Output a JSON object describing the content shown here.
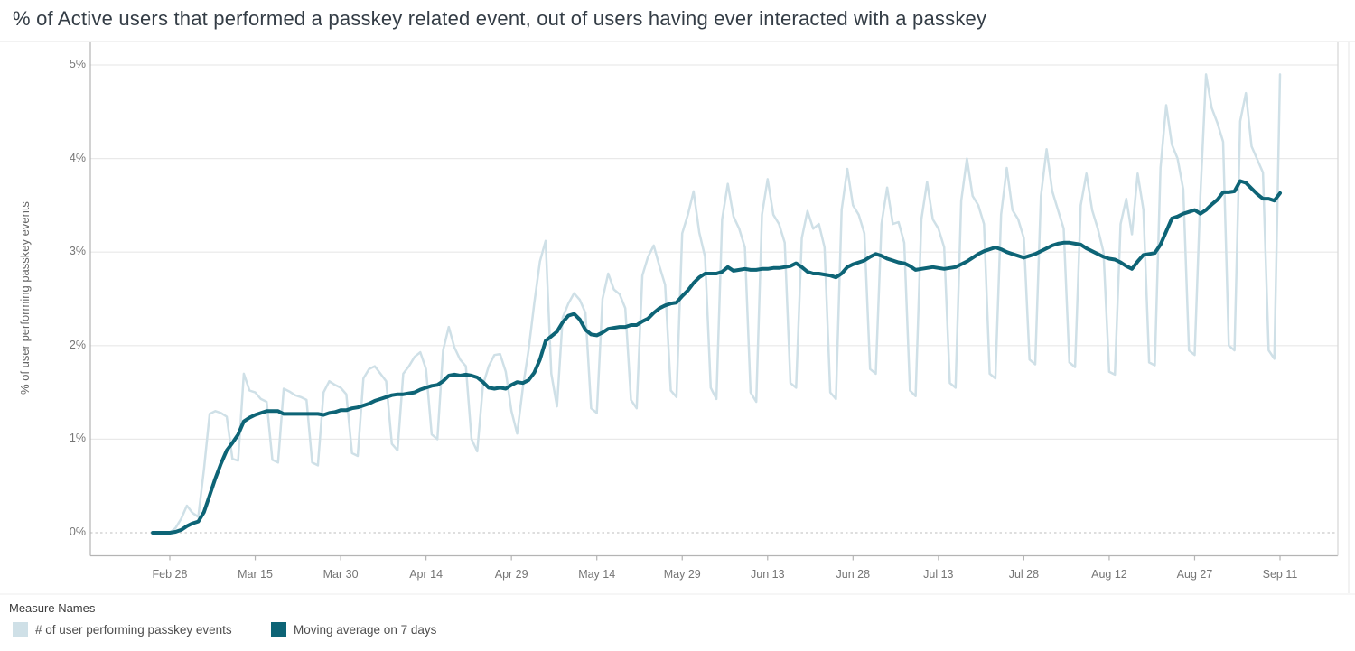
{
  "title": "% of Active users that performed a passkey related event, out of users having ever interacted with a passkey",
  "chart_data": {
    "type": "line",
    "title": "% of Active users that performed a passkey related event, out of users having ever interacted with a passkey",
    "xlabel": "",
    "ylabel": "% of user performing passkey events",
    "y_axis": {
      "label": "% of user performing passkey events",
      "tick_labels": [
        "0%",
        "1%",
        "2%",
        "3%",
        "4%",
        "5%"
      ],
      "tick_values": [
        0,
        1,
        2,
        3,
        4,
        5
      ],
      "min": 0,
      "max": 5.15,
      "unit": "percent",
      "grid": true,
      "zero_line_style": "dotted"
    },
    "x_axis": {
      "tick_labels": [
        "Feb 28",
        "Mar 15",
        "Mar 30",
        "Apr 14",
        "Apr 29",
        "May 14",
        "May 29",
        "Jun 13",
        "Jun 28",
        "Jul 13",
        "Jul 28",
        "Aug 12",
        "Aug 27",
        "Sep 11"
      ],
      "tick_day_indices": [
        3,
        18,
        33,
        48,
        63,
        78,
        93,
        108,
        123,
        138,
        153,
        168,
        183,
        198
      ],
      "tick_interval_days": 15,
      "series_start_label": "Feb 25",
      "series_end_label": "Sep 11",
      "num_days": 199
    },
    "legend_position": "bottom-left",
    "series": [
      {
        "name": "# of user performing passkey events",
        "color": "#cfe0e7",
        "stroke_width": 2.5,
        "values": [
          0,
          0,
          0,
          0,
          0.05,
          0.15,
          0.29,
          0.21,
          0.17,
          0.68,
          1.27,
          1.3,
          1.28,
          1.24,
          0.79,
          0.77,
          1.7,
          1.52,
          1.5,
          1.43,
          1.4,
          0.78,
          0.75,
          1.54,
          1.51,
          1.47,
          1.45,
          1.42,
          0.75,
          0.72,
          1.5,
          1.62,
          1.58,
          1.55,
          1.48,
          0.85,
          0.82,
          1.65,
          1.75,
          1.78,
          1.7,
          1.62,
          0.95,
          0.88,
          1.7,
          1.78,
          1.88,
          1.93,
          1.75,
          1.05,
          1,
          1.95,
          2.2,
          1.98,
          1.85,
          1.78,
          1,
          0.87,
          1.58,
          1.78,
          1.9,
          1.91,
          1.72,
          1.3,
          1.06,
          1.55,
          1.95,
          2.45,
          2.9,
          3.12,
          1.7,
          1.35,
          2.3,
          2.45,
          2.56,
          2.49,
          2.35,
          1.33,
          1.28,
          2.5,
          2.77,
          2.6,
          2.55,
          2.4,
          1.42,
          1.33,
          2.75,
          2.95,
          3.07,
          2.85,
          2.65,
          1.52,
          1.45,
          3.2,
          3.4,
          3.65,
          3.21,
          2.95,
          1.55,
          1.43,
          3.35,
          3.73,
          3.38,
          3.25,
          3.05,
          1.5,
          1.4,
          3.4,
          3.78,
          3.4,
          3.3,
          3.1,
          1.6,
          1.55,
          3.15,
          3.44,
          3.25,
          3.3,
          3.05,
          1.5,
          1.43,
          3.45,
          3.89,
          3.5,
          3.4,
          3.2,
          1.75,
          1.7,
          3.3,
          3.69,
          3.3,
          3.32,
          3.1,
          1.52,
          1.46,
          3.35,
          3.75,
          3.35,
          3.25,
          3.05,
          1.6,
          1.55,
          3.55,
          4,
          3.6,
          3.5,
          3.3,
          1.7,
          1.65,
          3.4,
          3.9,
          3.45,
          3.35,
          3.15,
          1.85,
          1.8,
          3.6,
          4.1,
          3.65,
          3.45,
          3.25,
          1.82,
          1.77,
          3.5,
          3.84,
          3.45,
          3.25,
          3,
          1.72,
          1.69,
          3.3,
          3.57,
          3.19,
          3.84,
          3.45,
          1.82,
          1.79,
          3.9,
          4.57,
          4.15,
          4,
          3.67,
          1.95,
          1.9,
          3.6,
          4.9,
          4.54,
          4.38,
          4.18,
          2,
          1.95,
          4.4,
          4.7,
          4.13,
          3.99,
          3.85,
          1.95,
          1.86,
          4.9
        ]
      },
      {
        "name": "Moving average on 7 days",
        "color": "#0d6476",
        "stroke_width": 4,
        "values": [
          0,
          0,
          0,
          0,
          0.01,
          0.03,
          0.07,
          0.1,
          0.12,
          0.22,
          0.4,
          0.58,
          0.74,
          0.88,
          0.96,
          1.05,
          1.19,
          1.23,
          1.26,
          1.28,
          1.3,
          1.3,
          1.3,
          1.27,
          1.27,
          1.27,
          1.27,
          1.27,
          1.27,
          1.27,
          1.26,
          1.28,
          1.29,
          1.31,
          1.31,
          1.33,
          1.34,
          1.36,
          1.38,
          1.41,
          1.43,
          1.45,
          1.47,
          1.48,
          1.48,
          1.49,
          1.5,
          1.53,
          1.55,
          1.57,
          1.58,
          1.62,
          1.68,
          1.69,
          1.68,
          1.69,
          1.68,
          1.66,
          1.61,
          1.55,
          1.54,
          1.55,
          1.54,
          1.58,
          1.61,
          1.6,
          1.63,
          1.71,
          1.85,
          2.05,
          2.1,
          2.15,
          2.25,
          2.32,
          2.34,
          2.28,
          2.17,
          2.12,
          2.11,
          2.14,
          2.18,
          2.19,
          2.2,
          2.2,
          2.22,
          2.22,
          2.26,
          2.29,
          2.35,
          2.4,
          2.43,
          2.45,
          2.46,
          2.53,
          2.59,
          2.67,
          2.73,
          2.77,
          2.77,
          2.77,
          2.79,
          2.84,
          2.8,
          2.81,
          2.82,
          2.81,
          2.81,
          2.82,
          2.82,
          2.83,
          2.83,
          2.84,
          2.85,
          2.88,
          2.84,
          2.79,
          2.77,
          2.77,
          2.76,
          2.75,
          2.73,
          2.77,
          2.84,
          2.87,
          2.89,
          2.91,
          2.95,
          2.98,
          2.96,
          2.93,
          2.91,
          2.89,
          2.88,
          2.85,
          2.81,
          2.82,
          2.83,
          2.84,
          2.83,
          2.82,
          2.83,
          2.84,
          2.87,
          2.9,
          2.94,
          2.98,
          3.01,
          3.03,
          3.05,
          3.03,
          3,
          2.98,
          2.96,
          2.94,
          2.96,
          2.98,
          3.01,
          3.04,
          3.07,
          3.09,
          3.1,
          3.1,
          3.09,
          3.08,
          3.04,
          3.01,
          2.98,
          2.95,
          2.93,
          2.92,
          2.89,
          2.85,
          2.82,
          2.9,
          2.97,
          2.98,
          2.99,
          3.08,
          3.22,
          3.36,
          3.38,
          3.41,
          3.43,
          3.45,
          3.41,
          3.45,
          3.51,
          3.56,
          3.64,
          3.64,
          3.65,
          3.76,
          3.74,
          3.68,
          3.62,
          3.57,
          3.57,
          3.55,
          3.63
        ]
      }
    ]
  },
  "legend": {
    "title": "Measure Names",
    "items": [
      {
        "label": "# of user performing passkey events",
        "color": "#cfe0e7"
      },
      {
        "label": "Moving average on 7 days",
        "color": "#0d6476"
      }
    ]
  },
  "colors": {
    "background": "#ffffff",
    "title_text": "#343d46",
    "axis_text": "#757575",
    "gridline": "#e9e9e9",
    "zero_line": "#c9c9c9",
    "axis_line": "#b4b4b4",
    "pane_border": "#d6d6d6"
  }
}
